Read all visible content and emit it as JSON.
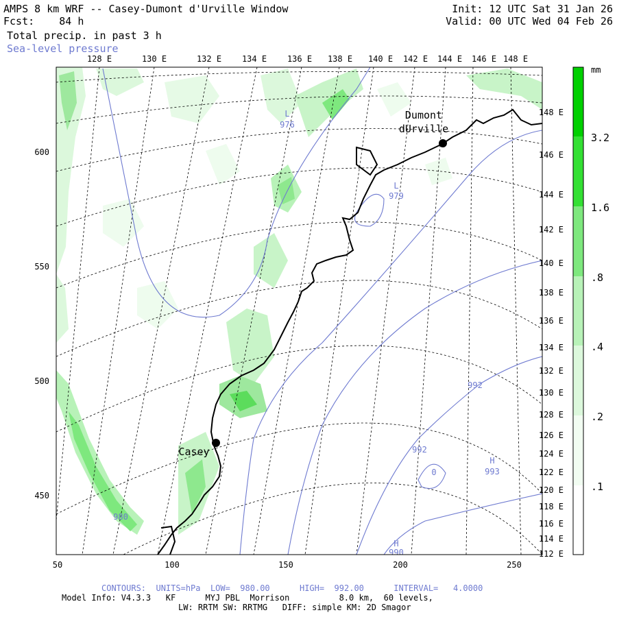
{
  "header": {
    "title": "AMPS 8 km WRF -- Casey-Dumont d'Urville Window",
    "fcst_label": "Fcst:",
    "fcst_value": "84 h",
    "field_precip": "Total precip. in past 3 h",
    "field_slp": "Sea-level pressure",
    "init": "Init: 12 UTC Sat 31 Jan 26",
    "valid": "Valid: 00 UTC Wed 04 Feb 26"
  },
  "map": {
    "top_longitudes": [
      "128 E",
      "130 E",
      "132 E",
      "134 E",
      "136 E",
      "138 E",
      "140 E",
      "142 E",
      "144 E",
      "146 E",
      "148 E"
    ],
    "right_longitudes": [
      "148 E",
      "146 E",
      "144 E",
      "142 E",
      "140 E",
      "138 E",
      "136 E",
      "134 E",
      "132 E",
      "130 E",
      "128 E",
      "126 E",
      "124 E",
      "122 E",
      "120 E",
      "118 E",
      "116 E",
      "114 E",
      "112 E"
    ],
    "x_ticks": [
      "50",
      "100",
      "150",
      "200",
      "250"
    ],
    "y_ticks": [
      "600",
      "550",
      "500",
      "450"
    ],
    "stations": [
      {
        "name": "Dumont dUrville",
        "line1": "Dumont",
        "line2": "dUrville"
      },
      {
        "name": "Casey",
        "line1": "Casey"
      }
    ],
    "pressure_labels": [
      {
        "symbol": "L",
        "value": "976"
      },
      {
        "symbol": "L",
        "value": "979"
      },
      {
        "symbol": "",
        "value": "992"
      },
      {
        "symbol": "",
        "value": "992"
      },
      {
        "symbol": "H",
        "value": "993"
      },
      {
        "symbol": "",
        "value": "980"
      },
      {
        "symbol": "H",
        "value": "990"
      },
      {
        "symbol": "",
        "value": "0"
      }
    ]
  },
  "colorbar": {
    "unit": "mm",
    "labels": [
      "3.2",
      "1.6",
      ".8",
      ".4",
      ".2",
      ".1"
    ],
    "colors": [
      "#00d000",
      "#33e033",
      "#7ee87e",
      "#b8f2b8",
      "#dcf8dc",
      "#f2fdf2"
    ]
  },
  "footer": {
    "contours": "CONTOURS:  UNITS=hPa  LOW=  980.00      HIGH=  992.00      INTERVAL=   4.0000",
    "model_info": "Model Info: V4.3.3   KF      MYJ PBL  Morrison          8.0 km,  60 levels,",
    "physics": "LW: RRTM SW: RRTMG   DIFF: simple KM: 2D Smagor"
  },
  "colors": {
    "contour": "#6e7ad0",
    "coast": "#000000",
    "grid": "#000000"
  }
}
